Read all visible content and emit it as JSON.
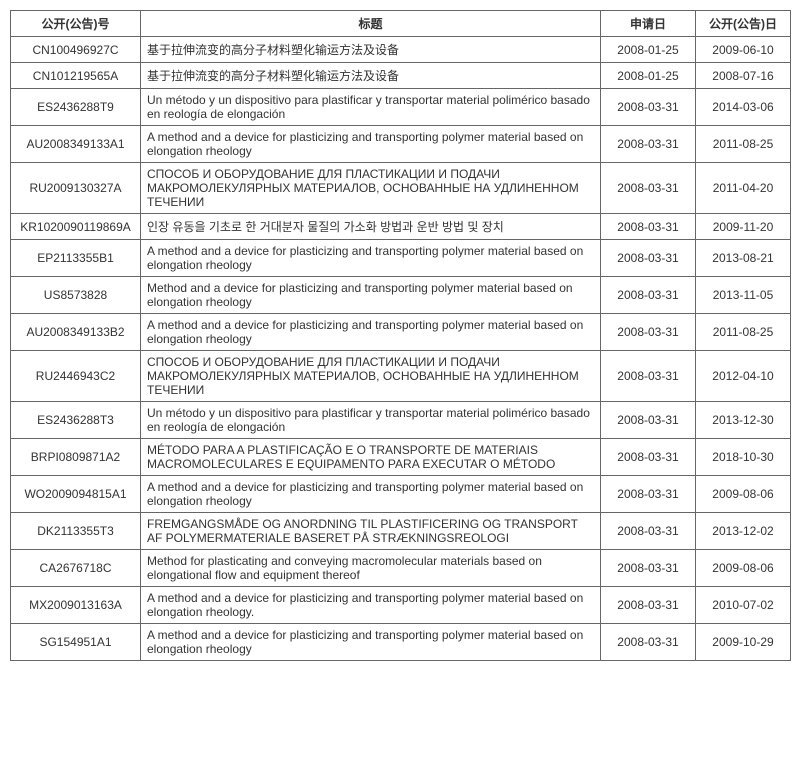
{
  "columns": [
    "公开(公告)号",
    "标题",
    "申请日",
    "公开(公告)日"
  ],
  "rows": [
    {
      "pubno": "CN100496927C",
      "title": "基于拉伸流变的高分子材料塑化输运方法及设备",
      "appdate": "2008-01-25",
      "pubdate": "2009-06-10"
    },
    {
      "pubno": "CN101219565A",
      "title": "基于拉伸流变的高分子材料塑化输运方法及设备",
      "appdate": "2008-01-25",
      "pubdate": "2008-07-16"
    },
    {
      "pubno": "ES2436288T9",
      "title": "Un método y un dispositivo para plastificar y transportar material polimérico basado en reología de elongación",
      "appdate": "2008-03-31",
      "pubdate": "2014-03-06"
    },
    {
      "pubno": "AU2008349133A1",
      "title": "A method and a device for plasticizing and transporting polymer material based on elongation rheology",
      "appdate": "2008-03-31",
      "pubdate": "2011-08-25"
    },
    {
      "pubno": "RU2009130327A",
      "title": "СПОСОБ И ОБОРУДОВАНИЕ ДЛЯ ПЛАСТИКАЦИИ И ПОДАЧИ МАКРОМОЛЕКУЛЯРНЫХ МАТЕРИАЛОВ, ОСНОВАННЫЕ НА УДЛИНЕННОМ ТЕЧЕНИИ",
      "appdate": "2008-03-31",
      "pubdate": "2011-04-20"
    },
    {
      "pubno": "KR1020090119869A",
      "title": "인장 유동을 기초로 한 거대분자 물질의 가소화 방법과 운반 방법 및 장치",
      "appdate": "2008-03-31",
      "pubdate": "2009-11-20"
    },
    {
      "pubno": "EP2113355B1",
      "title": "A method and a device for plasticizing and transporting polymer material based on elongation rheology",
      "appdate": "2008-03-31",
      "pubdate": "2013-08-21"
    },
    {
      "pubno": "US8573828",
      "title": "Method and a device for plasticizing and transporting polymer material based on elongation rheology",
      "appdate": "2008-03-31",
      "pubdate": "2013-11-05"
    },
    {
      "pubno": "AU2008349133B2",
      "title": "A method and a device for plasticizing and transporting polymer material based on elongation rheology",
      "appdate": "2008-03-31",
      "pubdate": "2011-08-25"
    },
    {
      "pubno": "RU2446943C2",
      "title": "СПОСОБ И ОБОРУДОВАНИЕ ДЛЯ ПЛАСТИКАЦИИ И ПОДАЧИ МАКРОМОЛЕКУЛЯРНЫХ МАТЕРИАЛОВ, ОСНОВАННЫЕ НА УДЛИНЕННОМ ТЕЧЕНИИ",
      "appdate": "2008-03-31",
      "pubdate": "2012-04-10"
    },
    {
      "pubno": "ES2436288T3",
      "title": "Un método y un dispositivo para plastificar y transportar material polimérico basado en reología de elongación",
      "appdate": "2008-03-31",
      "pubdate": "2013-12-30"
    },
    {
      "pubno": "BRPI0809871A2",
      "title": "MÉTODO PARA A PLASTIFICAÇÃO E O TRANSPORTE DE MATERIAIS MACROMOLECULARES E EQUIPAMENTO PARA EXECUTAR O MÉTODO",
      "appdate": "2008-03-31",
      "pubdate": "2018-10-30"
    },
    {
      "pubno": "WO2009094815A1",
      "title": "A method and a device for plasticizing and transporting polymer material based on elongation rheology",
      "appdate": "2008-03-31",
      "pubdate": "2009-08-06"
    },
    {
      "pubno": "DK2113355T3",
      "title": "FREMGANGSMÅDE OG ANORDNING TIL PLASTIFICERING OG TRANSPORT AF POLYMERMATERIALE BASERET PÅ STRÆKNINGSREOLOGI",
      "appdate": "2008-03-31",
      "pubdate": "2013-12-02"
    },
    {
      "pubno": "CA2676718C",
      "title": "Method for plasticating and conveying macromolecular materials based on elongational flow and equipment thereof",
      "appdate": "2008-03-31",
      "pubdate": "2009-08-06"
    },
    {
      "pubno": "MX2009013163A",
      "title": "A method and a device for plasticizing and transporting polymer material based on elongation rheology.",
      "appdate": "2008-03-31",
      "pubdate": "2010-07-02"
    },
    {
      "pubno": "SG154951A1",
      "title": "A method and a device for plasticizing and transporting polymer material based on elongation rheology",
      "appdate": "2008-03-31",
      "pubdate": "2009-10-29"
    }
  ]
}
